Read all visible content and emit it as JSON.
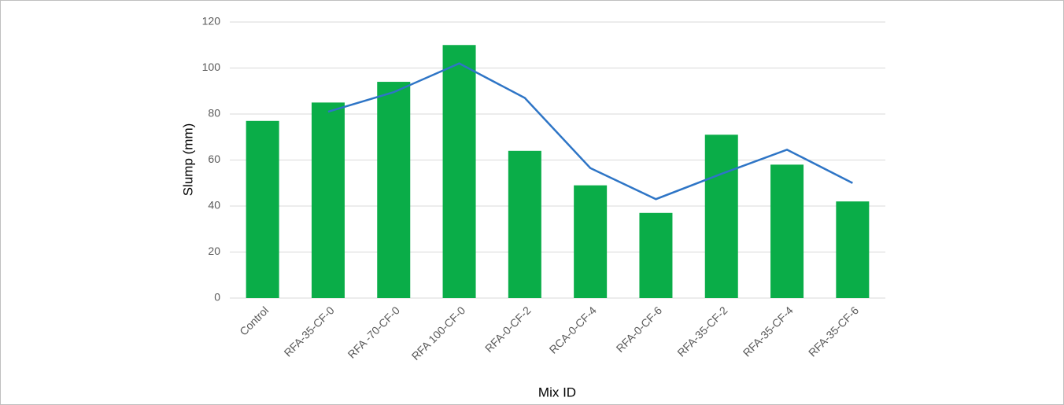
{
  "chart_data": {
    "type": "bar",
    "x_label": "Mix ID",
    "y_label": "Slump (mm)",
    "categories": [
      "Control",
      "RFA-35-CF-0",
      "RFA -70-CF-0",
      "RFA 100-CF-0",
      "RFA-0-CF-2",
      "RCA-0-CF-4",
      "RFA-0-CF-6",
      "RFA-35-CF-2",
      "RFA-35-CF-4",
      "RFA-35-CF-6"
    ],
    "series": [
      {
        "type": "bar",
        "color": "#0aad48",
        "values": [
          77,
          85,
          94,
          110,
          64,
          49,
          37,
          71,
          58,
          42
        ]
      },
      {
        "type": "line",
        "color": "#2e75c6",
        "values": [
          null,
          81,
          89.5,
          102,
          87,
          56.5,
          43,
          54,
          64.5,
          50
        ]
      }
    ],
    "ylim": [
      0,
      120
    ],
    "yticks": [
      0,
      20,
      40,
      60,
      80,
      100,
      120
    ],
    "grid": true
  }
}
